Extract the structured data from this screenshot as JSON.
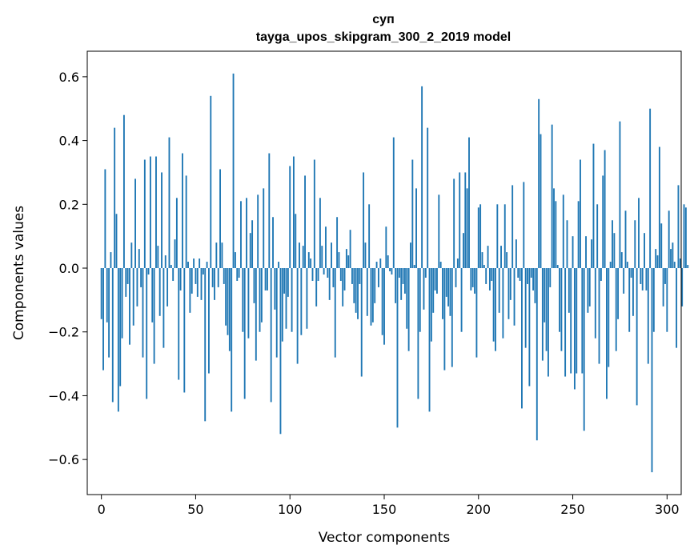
{
  "chart_data": {
    "type": "bar",
    "title": "суп",
    "subtitle": "tayga_upos_skipgram_300_2_2019 model",
    "xlabel": "Vector components",
    "ylabel": "Components values",
    "xlim": [
      -7.5,
      307.5
    ],
    "ylim": [
      -0.71,
      0.68
    ],
    "xticks": [
      0,
      50,
      100,
      150,
      200,
      250,
      300
    ],
    "xtick_labels": [
      "0",
      "50",
      "100",
      "150",
      "200",
      "250",
      "300"
    ],
    "yticks": [
      -0.6,
      -0.4,
      -0.2,
      0.0,
      0.2,
      0.4,
      0.6
    ],
    "ytick_labels": [
      "−0.6",
      "−0.4",
      "−0.2",
      "0.0",
      "0.2",
      "0.4",
      "0.6"
    ],
    "grid": false,
    "bar_color": "#1f77b4",
    "values": [
      -0.16,
      -0.32,
      0.31,
      -0.17,
      -0.28,
      0.05,
      -0.42,
      0.44,
      0.17,
      -0.45,
      -0.37,
      -0.22,
      0.48,
      -0.09,
      -0.05,
      -0.24,
      0.08,
      -0.18,
      0.28,
      -0.12,
      0.06,
      -0.06,
      -0.28,
      0.34,
      -0.41,
      -0.02,
      0.35,
      -0.17,
      -0.3,
      0.35,
      0.07,
      -0.15,
      0.3,
      -0.25,
      0.04,
      -0.12,
      0.41,
      0.01,
      -0.04,
      0.09,
      0.22,
      -0.35,
      -0.07,
      0.36,
      -0.39,
      0.29,
      0.02,
      -0.14,
      -0.08,
      0.03,
      -0.05,
      -0.09,
      0.03,
      -0.1,
      -0.02,
      -0.48,
      0.02,
      -0.33,
      0.54,
      -0.06,
      -0.1,
      0.08,
      -0.06,
      0.31,
      0.08,
      -0.05,
      -0.18,
      -0.21,
      -0.26,
      -0.45,
      0.61,
      0.05,
      -0.04,
      -0.03,
      0.21,
      -0.2,
      -0.41,
      0.22,
      -0.22,
      0.11,
      0.15,
      -0.11,
      -0.29,
      0.23,
      -0.2,
      -0.17,
      0.25,
      -0.07,
      -0.07,
      0.36,
      -0.42,
      0.16,
      -0.13,
      -0.28,
      0.02,
      -0.52,
      -0.23,
      -0.08,
      -0.19,
      -0.09,
      0.32,
      -0.2,
      0.35,
      0.17,
      -0.3,
      0.08,
      -0.21,
      0.07,
      0.29,
      -0.19,
      0.05,
      0.03,
      -0.04,
      0.34,
      -0.12,
      -0.04,
      0.22,
      0.07,
      -0.02,
      0.13,
      -0.03,
      -0.1,
      0.08,
      -0.06,
      -0.28,
      0.16,
      0.05,
      -0.04,
      -0.12,
      -0.07,
      0.06,
      0.04,
      0.12,
      -0.05,
      -0.11,
      -0.14,
      -0.16,
      -0.05,
      -0.34,
      0.3,
      0.08,
      -0.15,
      0.2,
      -0.18,
      -0.17,
      -0.11,
      0.02,
      -0.06,
      0.03,
      -0.21,
      -0.24,
      0.13,
      0.04,
      -0.01,
      -0.02,
      0.41,
      -0.11,
      -0.5,
      -0.03,
      -0.1,
      -0.05,
      -0.08,
      -0.19,
      -0.26,
      0.08,
      0.34,
      0.01,
      0.25,
      -0.41,
      -0.2,
      0.57,
      -0.13,
      -0.03,
      0.44,
      -0.45,
      -0.23,
      -0.14,
      -0.07,
      -0.08,
      0.23,
      0.02,
      -0.16,
      -0.32,
      -0.09,
      -0.12,
      -0.15,
      -0.31,
      0.28,
      -0.06,
      0.03,
      0.3,
      -0.2,
      0.11,
      0.3,
      0.25,
      0.41,
      -0.07,
      -0.06,
      -0.08,
      -0.28,
      0.19,
      0.2,
      0.05,
      0.01,
      -0.05,
      0.07,
      -0.07,
      -0.04,
      -0.23,
      -0.26,
      0.2,
      -0.14,
      0.07,
      -0.22,
      0.2,
      0.05,
      -0.16,
      -0.1,
      0.26,
      -0.18,
      0.09,
      -0.03,
      -0.04,
      -0.44,
      0.27,
      -0.25,
      -0.05,
      -0.37,
      -0.03,
      -0.07,
      -0.11,
      -0.54,
      0.53,
      0.42,
      -0.29,
      -0.17,
      -0.26,
      -0.34,
      -0.06,
      0.45,
      0.25,
      0.21,
      0.01,
      -0.2,
      -0.26,
      0.23,
      -0.34,
      0.15,
      -0.14,
      -0.33,
      0.1,
      -0.38,
      -0.33,
      0.21,
      0.34,
      -0.33,
      -0.51,
      0.1,
      -0.14,
      -0.12,
      0.09,
      0.39,
      -0.22,
      0.2,
      -0.3,
      -0.04,
      0.29,
      0.37,
      -0.41,
      -0.31,
      0.02,
      0.15,
      0.11,
      -0.26,
      -0.16,
      0.46,
      0.05,
      -0.08,
      0.18,
      0.02,
      -0.2,
      -0.03,
      -0.15,
      0.15,
      -0.43,
      0.22,
      -0.05,
      -0.07,
      0.11,
      -0.07,
      -0.3,
      0.5,
      -0.64,
      -0.2,
      0.06,
      0.04,
      0.38,
      0.14,
      -0.12,
      -0.05,
      -0.2,
      0.18,
      0.06,
      0.08,
      0.02,
      -0.25,
      0.26,
      0.03,
      -0.12,
      0.2,
      0.19,
      0.01
    ]
  }
}
